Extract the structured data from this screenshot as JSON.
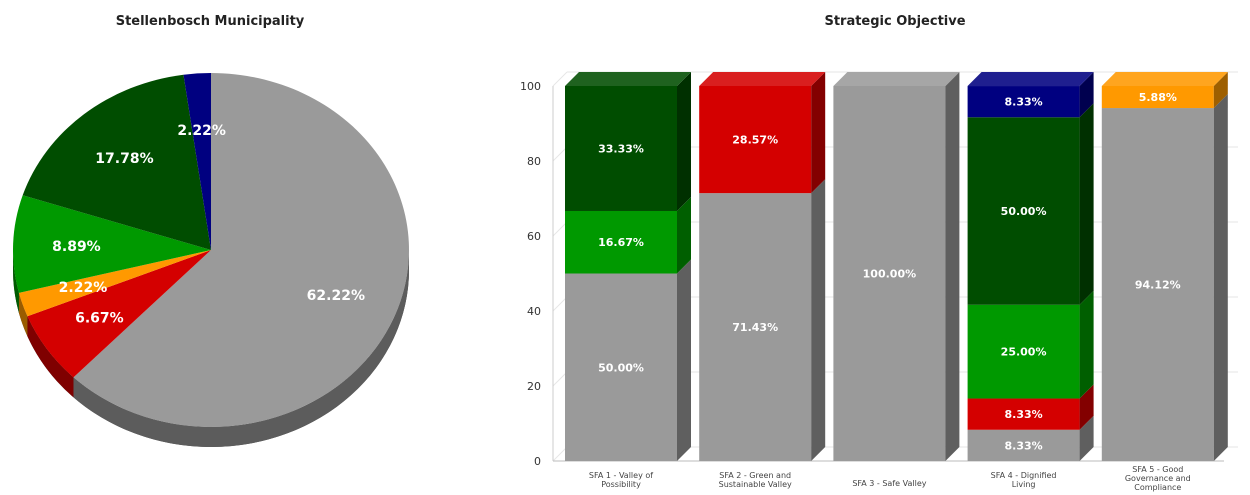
{
  "chart_data": [
    {
      "type": "pie",
      "title": "Stellenbosch Municipality",
      "slices": [
        {
          "value": 62.22,
          "label": "62.22%",
          "color": "#9a9a9a"
        },
        {
          "value": 6.67,
          "label": "6.67%",
          "color": "#d40000"
        },
        {
          "value": 2.22,
          "label": "2.22%",
          "color": "#ff9900"
        },
        {
          "value": 8.89,
          "label": "8.89%",
          "color": "#009900"
        },
        {
          "value": 17.78,
          "label": "17.78%",
          "color": "#004d00"
        },
        {
          "value": 2.22,
          "label": "2.22%",
          "color": "#000080"
        }
      ]
    },
    {
      "type": "bar",
      "stacked": true,
      "title": "Strategic Objective",
      "categories": [
        "SFA 1 - Valley of Possibility",
        "SFA 2 - Green and Sustainable Valley",
        "SFA 3 - Safe Valley",
        "SFA 4 - Dignified Living",
        "SFA 5 - Good Governance and Compliance"
      ],
      "ylim": [
        0,
        100
      ],
      "yticks": [
        0,
        20,
        40,
        60,
        80,
        100
      ],
      "grid": true,
      "series": [
        {
          "color": "#9a9a9a",
          "values": [
            50.0,
            71.43,
            100.0,
            8.33,
            94.12
          ],
          "labels": [
            "50.00%",
            "71.43%",
            "100.00%",
            "8.33%",
            "94.12%"
          ]
        },
        {
          "color": "#d40000",
          "values": [
            0,
            28.57,
            0,
            8.33,
            0
          ],
          "labels": [
            "",
            "28.57%",
            "",
            "8.33%",
            ""
          ]
        },
        {
          "color": "#009900",
          "values": [
            16.67,
            0,
            0,
            25.0,
            0
          ],
          "labels": [
            "16.67%",
            "",
            "",
            "25.00%",
            ""
          ]
        },
        {
          "color": "#004d00",
          "values": [
            33.33,
            0,
            0,
            50.0,
            0
          ],
          "labels": [
            "33.33%",
            "",
            "",
            "50.00%",
            ""
          ]
        },
        {
          "color": "#ff9900",
          "values": [
            0,
            0,
            0,
            0,
            5.88
          ],
          "labels": [
            "",
            "",
            "",
            "",
            "5.88%"
          ]
        },
        {
          "color": "#000080",
          "values": [
            0,
            0,
            0,
            8.33,
            0
          ],
          "labels": [
            "",
            "",
            "",
            "8.33%",
            ""
          ]
        }
      ]
    }
  ]
}
